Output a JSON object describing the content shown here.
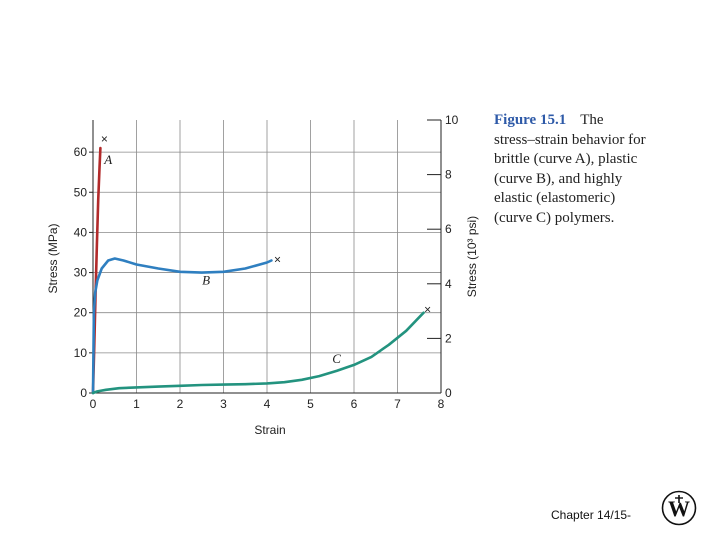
{
  "chart_data": {
    "type": "line",
    "xlabel": "Strain",
    "ylabel": "Stress (MPa)",
    "y2label": "Stress (10³ psi)",
    "xlim": [
      0,
      8
    ],
    "ylim": [
      0,
      68
    ],
    "y2lim": [
      0,
      10
    ],
    "grid": true,
    "x_ticks": [
      "0",
      "1",
      "2",
      "3",
      "4",
      "5",
      "6",
      "7",
      "8"
    ],
    "y_ticks": [
      "0",
      "10",
      "20",
      "30",
      "40",
      "50",
      "60"
    ],
    "y2_ticks": [
      "0",
      "2",
      "4",
      "6",
      "8",
      "10"
    ],
    "series": [
      {
        "name": "A",
        "color": "#b22a2a",
        "x": [
          0,
          0.03,
          0.06,
          0.09,
          0.12,
          0.15,
          0.17
        ],
        "y": [
          0,
          12,
          25,
          37,
          48,
          56,
          61
        ]
      },
      {
        "name": "B",
        "color": "#2f7fc0",
        "x": [
          0,
          0.02,
          0.05,
          0.1,
          0.2,
          0.35,
          0.5,
          0.7,
          1.0,
          1.5,
          2.0,
          2.5,
          3.0,
          3.5,
          4.0,
          4.1
        ],
        "y": [
          0,
          20,
          25,
          28,
          31,
          33,
          33.5,
          33,
          32,
          31,
          30.2,
          30,
          30.2,
          31,
          32.5,
          33
        ]
      },
      {
        "name": "C",
        "color": "#23937f",
        "x": [
          0,
          0.1,
          0.3,
          0.6,
          1.0,
          1.5,
          2.0,
          2.5,
          3.0,
          3.5,
          4.0,
          4.4,
          4.8,
          5.2,
          5.6,
          6.0,
          6.4,
          6.8,
          7.2,
          7.6
        ],
        "y": [
          0,
          0.4,
          0.8,
          1.2,
          1.4,
          1.6,
          1.8,
          2.0,
          2.1,
          2.2,
          2.4,
          2.7,
          3.3,
          4.2,
          5.5,
          7.0,
          9.0,
          12.0,
          15.5,
          20.0
        ]
      }
    ],
    "fracture_markers": [
      {
        "series": "A",
        "x": 0.17,
        "y": 63,
        "symbol": "×"
      },
      {
        "series": "B",
        "x": 4.15,
        "y": 33,
        "symbol": "×"
      },
      {
        "series": "C",
        "x": 7.6,
        "y": 20.5,
        "symbol": "×"
      }
    ],
    "annotations": [
      {
        "text": "A",
        "x": 0.35,
        "y": 57
      },
      {
        "text": "B",
        "x": 2.6,
        "y": 27
      },
      {
        "text": "C",
        "x": 5.6,
        "y": 7.5
      }
    ]
  },
  "caption": {
    "heading": "Figure 15.1",
    "lines": [
      "The",
      "stress–strain behavior for",
      "brittle (curve A), plastic",
      "(curve B), and highly",
      "elastic (elastomeric)",
      "(curve C) polymers."
    ]
  },
  "footer": {
    "text": "Chapter 14/15-"
  },
  "logo": {
    "icon": "wiley-logo-icon",
    "letters": "W"
  }
}
